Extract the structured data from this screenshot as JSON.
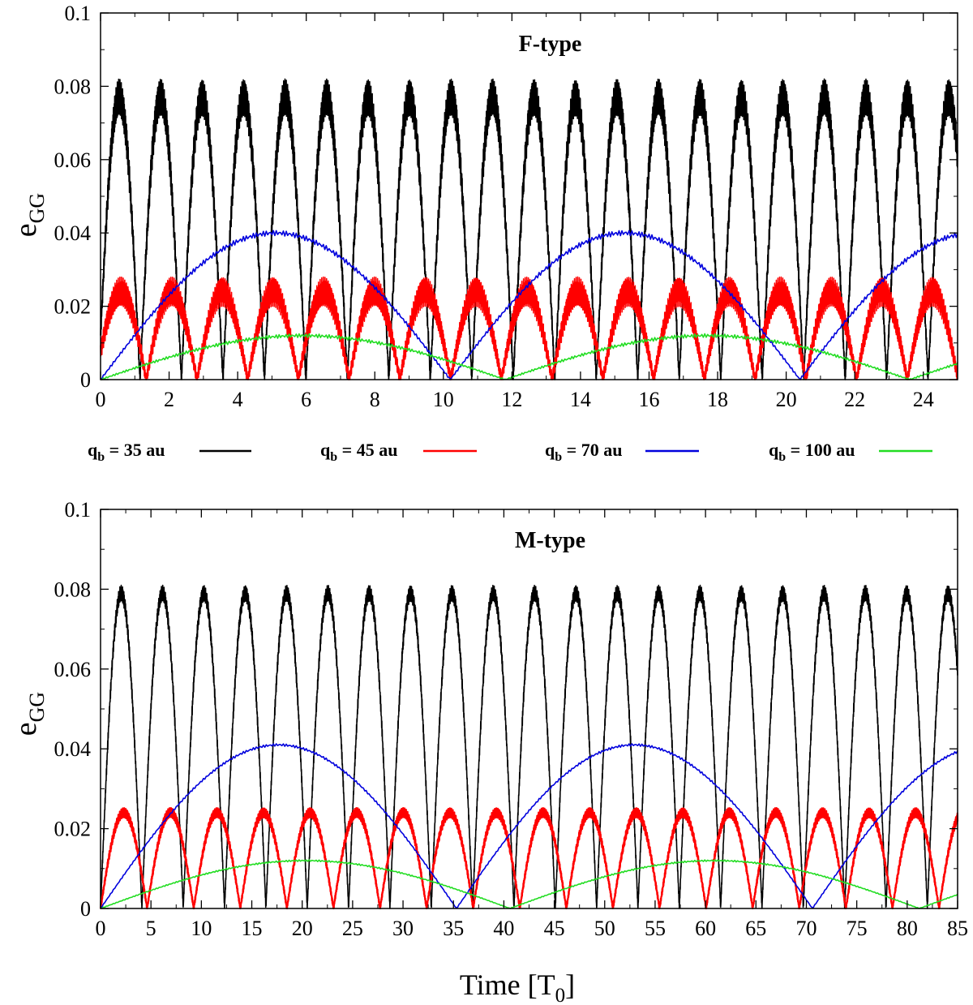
{
  "xlabel_main": "Time [T",
  "xlabel_sub": "0",
  "xlabel_end": "]",
  "ylabel_main": "e",
  "ylabel_sub": "GG",
  "legend": [
    {
      "name": "q",
      "sub": "b",
      "text": " = 35 au",
      "color": "#000000"
    },
    {
      "name": "q",
      "sub": "b",
      "text": " = 45 au",
      "color": "#ff0000"
    },
    {
      "name": "q",
      "sub": "b",
      "text": " = 70 au",
      "color": "#0000dd"
    },
    {
      "name": "q",
      "sub": "b",
      "text": " = 100 au",
      "color": "#22dd22"
    }
  ],
  "chart_data": [
    {
      "type": "line",
      "title": "F-type",
      "xlabel": "Time [T0]",
      "ylabel": "eGG",
      "xlim": [
        0,
        25
      ],
      "ylim": [
        0,
        0.1
      ],
      "xticks": [
        "0",
        "2",
        "4",
        "6",
        "8",
        "10",
        "12",
        "14",
        "16",
        "18",
        "20",
        "22",
        "24"
      ],
      "yticks": [
        "0",
        "0.02",
        "0.04",
        "0.06",
        "0.08",
        "0.1"
      ],
      "series": [
        {
          "name": "qb = 35 au",
          "color": "#000000",
          "amplitude": 0.077,
          "period": 1.21,
          "phase": 0.05,
          "jitter": 0.005,
          "min": 0.0
        },
        {
          "name": "qb = 45 au",
          "color": "#ff0000",
          "amplitude": 0.024,
          "period": 1.48,
          "phase": 0.1,
          "jitter": 0.004,
          "min": 0.0
        },
        {
          "name": "qb = 70 au",
          "color": "#0000dd",
          "amplitude": 0.04,
          "period": 10.2,
          "phase": 0.0,
          "jitter": 0.0007,
          "min": 0.0
        },
        {
          "name": "qb = 100 au",
          "color": "#22dd22",
          "amplitude": 0.012,
          "period": 11.8,
          "phase": 0.0,
          "jitter": 0.0005,
          "min": 0.0
        }
      ]
    },
    {
      "type": "line",
      "title": "M-type",
      "xlabel": "Time [T0]",
      "ylabel": "eGG",
      "xlim": [
        0,
        85
      ],
      "ylim": [
        0,
        0.1
      ],
      "xticks": [
        "0",
        "5",
        "10",
        "15",
        "20",
        "25",
        "30",
        "35",
        "40",
        "45",
        "50",
        "55",
        "60",
        "65",
        "70",
        "75",
        "80",
        "85"
      ],
      "yticks": [
        "0",
        "0.02",
        "0.04",
        "0.06",
        "0.08",
        "0.1"
      ],
      "series": [
        {
          "name": "qb = 35 au",
          "color": "#000000",
          "amplitude": 0.079,
          "period": 4.1,
          "phase": 0.0,
          "jitter": 0.002,
          "min": 0.0
        },
        {
          "name": "qb = 45 au",
          "color": "#ff0000",
          "amplitude": 0.024,
          "period": 4.62,
          "phase": 0.0,
          "jitter": 0.0012,
          "min": 0.0
        },
        {
          "name": "qb = 70 au",
          "color": "#0000dd",
          "amplitude": 0.041,
          "period": 35.3,
          "phase": 0.0,
          "jitter": 0.0003,
          "min": 0.0
        },
        {
          "name": "qb = 100 au",
          "color": "#22dd22",
          "amplitude": 0.012,
          "period": 40.6,
          "phase": 0.0,
          "jitter": 0.0002,
          "min": 0.0
        }
      ]
    }
  ]
}
